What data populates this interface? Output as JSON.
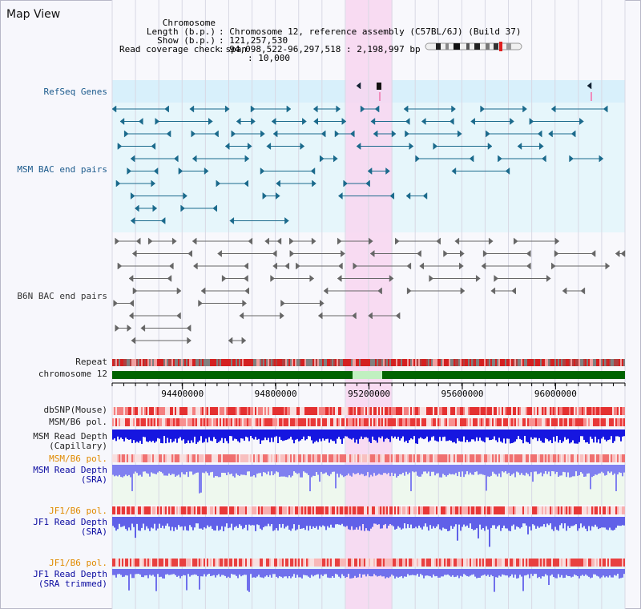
{
  "page": {
    "title": "Map View"
  },
  "header": {
    "rows": [
      {
        "label": "Chromosome",
        "value": "Chromosome 12, reference assembly (C57BL/6J) (Build 37)"
      },
      {
        "label": "Length (b.p.)",
        "value": "121,257,530"
      },
      {
        "label": "Show (b.p.)",
        "value": "94,098,522-96,297,518 : 2,198,997 bp"
      },
      {
        "label": "Read coverage check span",
        "value": "10,000"
      }
    ],
    "separator": ":"
  },
  "tracks": {
    "refseq": "RefSeq Genes",
    "msm_bac": "MSM BAC end pairs",
    "b6n_bac": "B6N BAC end pairs",
    "repeat": "Repeat",
    "chromosome": "chromosome 12",
    "dbsnp": "dbSNP(Mouse)",
    "msm_b6_pol": "MSM/B6 pol.",
    "msm_depth_cap_1": "MSM Read Depth",
    "msm_depth_cap_2": "(Capillary)",
    "msm_b6_pol_2": "MSM/B6 pol.",
    "msm_depth_sra_1": "MSM Read Depth",
    "msm_depth_sra_2": "(SRA)",
    "jf1_b6_pol": "JF1/B6 pol.",
    "jf1_depth_sra_1": "JF1 Read Depth",
    "jf1_depth_sra_2": "(SRA)",
    "jf1_b6_pol_2": "JF1/B6 pol.",
    "jf1_depth_trim_1": "JF1 Read Depth",
    "jf1_depth_trim_2": "(SRA trimmed)"
  },
  "axis": {
    "ticks": [
      {
        "value": 94400000,
        "label": "94400000"
      },
      {
        "value": 94800000,
        "label": "94800000"
      },
      {
        "value": 95200000,
        "label": "95200000"
      },
      {
        "value": 95600000,
        "label": "95600000"
      },
      {
        "value": 96000000,
        "label": "96000000"
      }
    ],
    "start": 94098522,
    "end": 96297518
  },
  "highlight": {
    "from": 95100000,
    "to": 95300000
  },
  "colors": {
    "highlight": "#f8d6f0",
    "refseq_bg": "#d8f0fb",
    "msm_bg": "#e6f6fb",
    "chrom": "#006400",
    "chrom_light": "#c0f0c0",
    "teal": "#1b6a8c",
    "gray": "#666666",
    "blue": "#1a1ae0",
    "lightblue": "#8888ff",
    "red": "#e02020",
    "pink": "#f8b0b0"
  }
}
